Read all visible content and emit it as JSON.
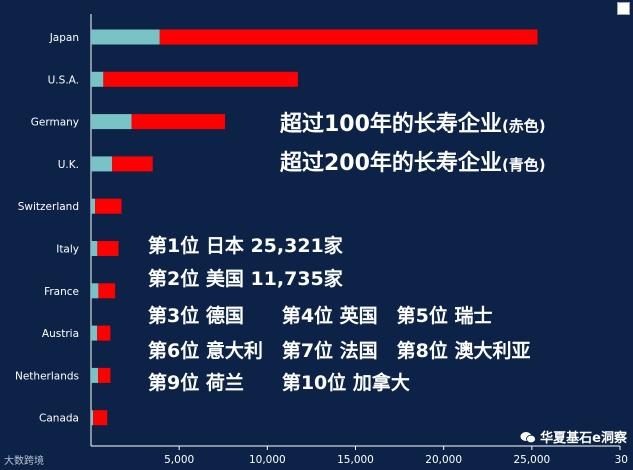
{
  "chart_data": {
    "type": "bar",
    "orientation": "horizontal",
    "stacked": true,
    "categories": [
      "Japan",
      "U.S.A.",
      "Germany",
      "U.K.",
      "Switzerland",
      "Italy",
      "France",
      "Austria",
      "Netherlands",
      "Canada"
    ],
    "series": [
      {
        "name": "超过200年的长寿企业(青色)",
        "color": "#79c2c6",
        "values": [
          3900,
          700,
          2300,
          1200,
          230,
          360,
          420,
          350,
          400,
          120
        ]
      },
      {
        "name": "超过100年的长寿企业(赤色)",
        "color": "#ff0000",
        "values": [
          21421,
          11035,
          5300,
          2300,
          1500,
          1200,
          950,
          750,
          700,
          800
        ]
      }
    ],
    "xticks": [
      "5,000",
      "10,000",
      "15,000",
      "20,000",
      "25,000",
      "30"
    ],
    "xlim": [
      0,
      30000
    ],
    "grid": false,
    "legend_placement": "middle-right",
    "title": "",
    "xlabel": "",
    "ylabel": ""
  },
  "legend_texts": [
    {
      "main": "超过100年的长寿企业",
      "suffix": "(赤色)"
    },
    {
      "main": "超过200年的长寿企业",
      "suffix": "(青色)"
    }
  ],
  "annotations": [
    "第1位 日本 25,321家",
    "第2位 美国 11,735家",
    "第3位 德国　　第4位 英国　第5位 瑞士",
    "第6位 意大利　第7位 法国　第8位 澳大利亚",
    "第9位 荷兰　　第10位 加拿大"
  ],
  "watermark_right": "华夏基石e洞察",
  "watermark_left": "大数跨境",
  "colors": {
    "background": "#0c2347",
    "over_200_years": "#79c2c6",
    "over_100_years": "#ff0000",
    "text": "#ffffff"
  },
  "icons": {
    "wechat": "wechat-icon",
    "corner": "window-corner-icon"
  }
}
